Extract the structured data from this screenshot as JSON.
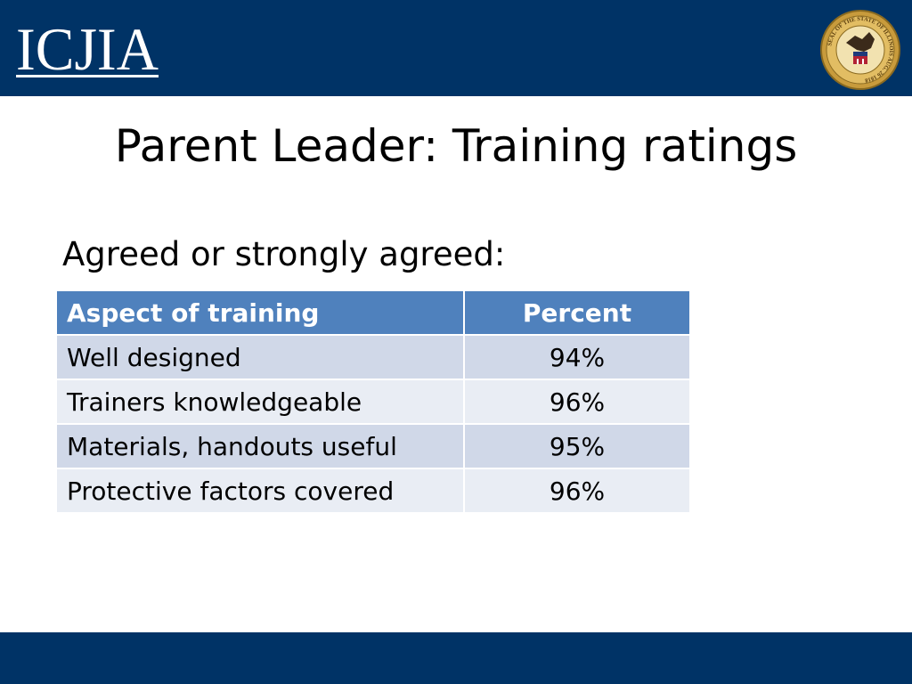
{
  "header": {
    "logo_text": "ICJIA",
    "seal_text": "SEAL OF THE STATE OF ILLINOIS AUG. 26 1818",
    "band_color": "#003366"
  },
  "slide": {
    "title": "Parent Leader: Training ratings",
    "subtitle": "Agreed or strongly agreed:"
  },
  "table": {
    "headers": [
      "Aspect of training",
      "Percent"
    ],
    "rows": [
      {
        "aspect": "Well designed",
        "percent": "94%"
      },
      {
        "aspect": "Trainers knowledgeable",
        "percent": "96%"
      },
      {
        "aspect": "Materials, handouts useful",
        "percent": "95%"
      },
      {
        "aspect": "Protective factors covered",
        "percent": "96%"
      }
    ],
    "header_color": "#4f81bd",
    "row_colors": [
      "#d0d8e8",
      "#e9edf4"
    ]
  }
}
